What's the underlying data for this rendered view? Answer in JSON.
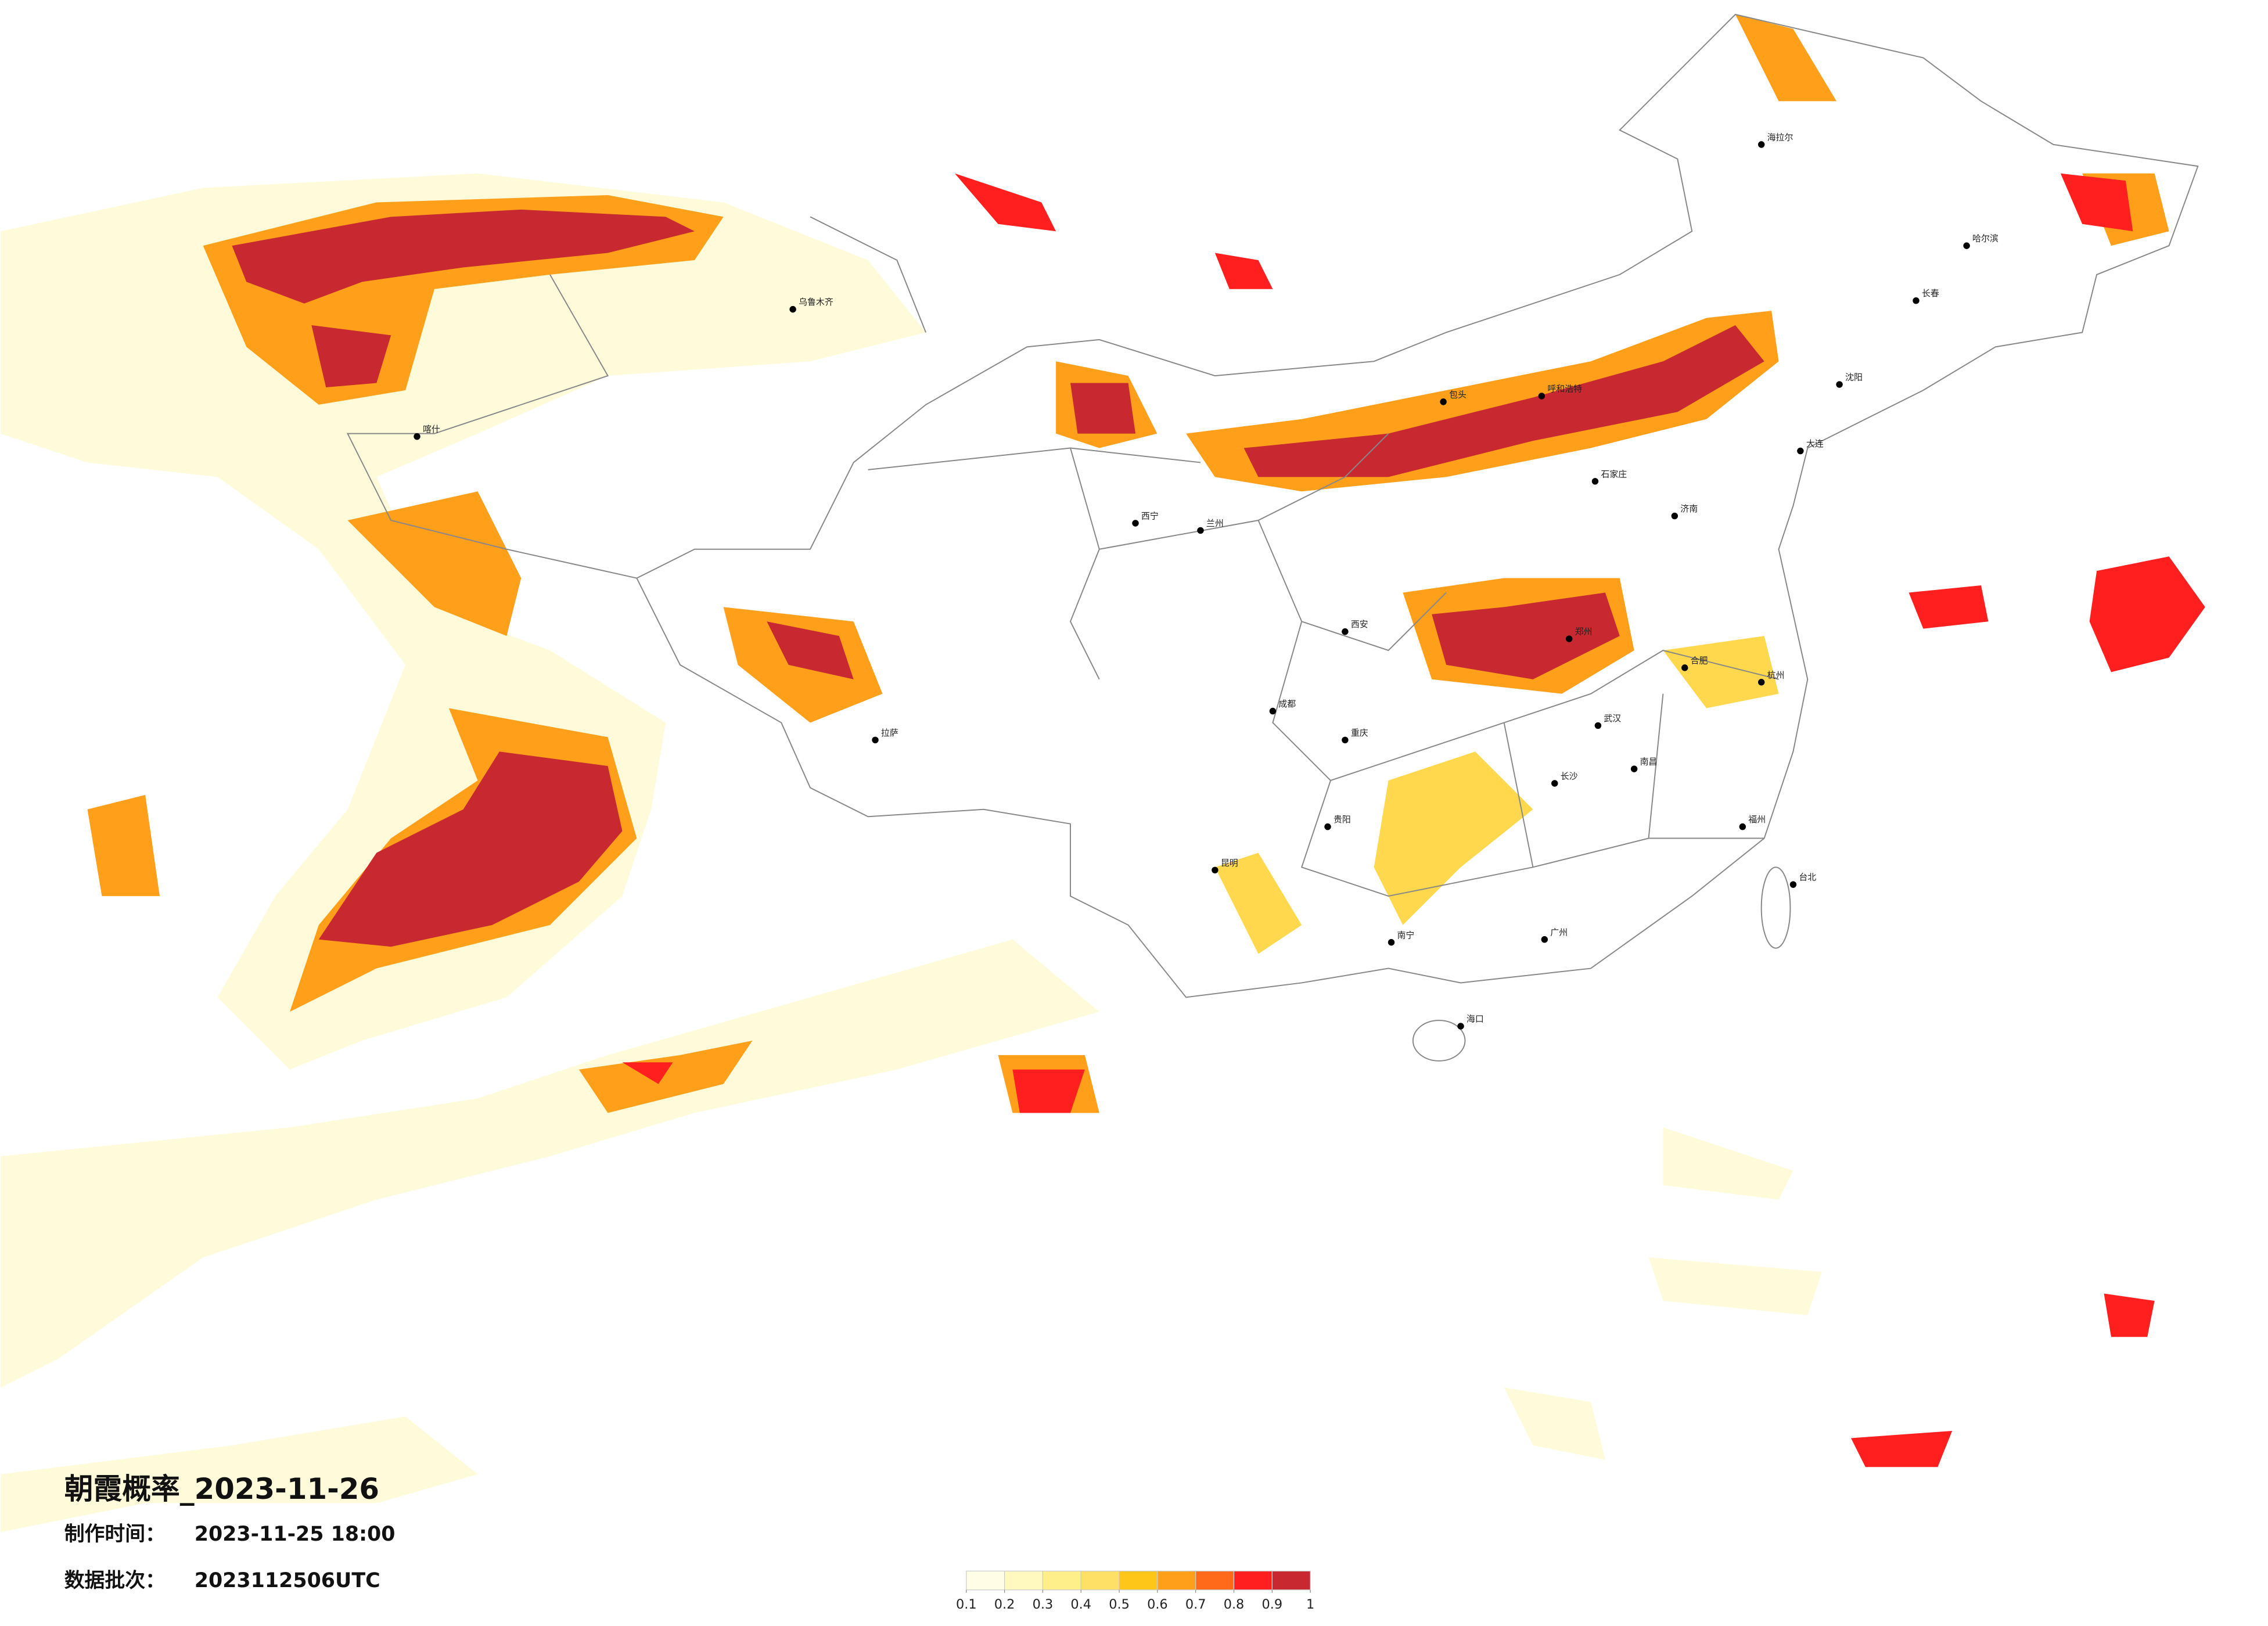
{
  "title": "朝霞概率_2023-11-26",
  "made_label": "制作时间：",
  "made_time": "2023-11-25 18:00",
  "batch_label": "数据批次：",
  "batch": "2023112506UTC",
  "legend": {
    "colors": [
      "#fffde6",
      "#fff8bf",
      "#ffef8a",
      "#ffe066",
      "#ffc61a",
      "#ff9f1a",
      "#ff6a1a",
      "#ff1f1f",
      "#c8282f"
    ],
    "ticks": [
      0.1,
      0.2,
      0.3,
      0.4,
      0.5,
      0.6,
      0.7,
      0.8,
      0.9,
      1
    ]
  },
  "cities": [
    "海拉尔",
    "哈尔滨",
    "长春",
    "沈阳",
    "大连",
    "呼和浩特",
    "包头",
    "石家庄",
    "济南",
    "郑州",
    "西安",
    "兰州",
    "西宁",
    "拉萨",
    "成都",
    "重庆",
    "昆明",
    "贵阳",
    "南宁",
    "广州",
    "福州",
    "杭州",
    "台北",
    "乌鲁木齐",
    "喀什",
    "海口",
    "武汉",
    "长沙",
    "南昌",
    "合肥"
  ]
}
